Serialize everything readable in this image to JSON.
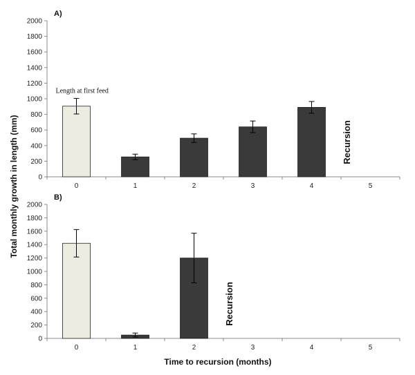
{
  "chart_data": {
    "type": "bar",
    "ylabel": "Total monthly growth in length (mm)",
    "xlabel": "Time to recursion (months)",
    "colors": {
      "first_feed_bar": "#eeece1",
      "growth_bar": "#3a3a3a",
      "outline": "#222222",
      "axis": "#888888"
    },
    "panels": [
      {
        "label": "A)",
        "categories": [
          "0",
          "1",
          "2",
          "3",
          "4",
          "5"
        ],
        "values": [
          905,
          255,
          495,
          640,
          890,
          null
        ],
        "errors": [
          100,
          35,
          55,
          75,
          75,
          null
        ],
        "bar_kinds": [
          "first_feed",
          "growth",
          "growth",
          "growth",
          "growth",
          "none"
        ],
        "ylim": [
          0,
          2000
        ],
        "yticks": [
          "0",
          "200",
          "400",
          "600",
          "800",
          "1000",
          "1200",
          "1400",
          "1600",
          "1800",
          "2000"
        ],
        "annotation": "Length at first feed",
        "annotation_category": "0",
        "recursion_label": "Recursion",
        "recursion_category": "4"
      },
      {
        "label": "B)",
        "categories": [
          "0",
          "1",
          "2",
          "3",
          "4",
          "5"
        ],
        "values": [
          1420,
          50,
          1200,
          null,
          null,
          null
        ],
        "errors": [
          205,
          30,
          370,
          null,
          null,
          null
        ],
        "bar_kinds": [
          "first_feed",
          "growth",
          "growth",
          "none",
          "none",
          "none"
        ],
        "ylim": [
          0,
          2000
        ],
        "yticks": [
          "0",
          "200",
          "400",
          "600",
          "800",
          "1000",
          "1200",
          "1400",
          "1600",
          "1800",
          "2000"
        ],
        "annotation": "",
        "recursion_label": "Recursion",
        "recursion_category": "2"
      }
    ]
  }
}
